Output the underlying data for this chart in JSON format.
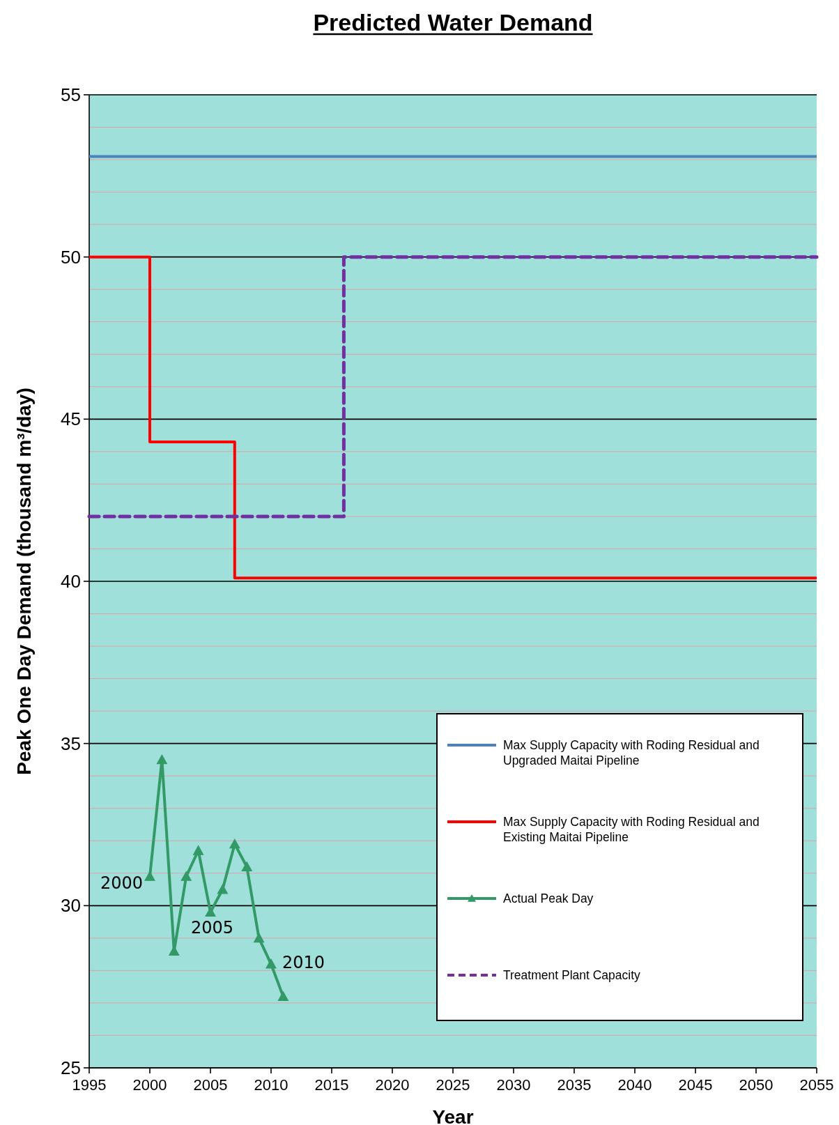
{
  "chart_data": {
    "type": "line",
    "title": "Predicted Water Demand",
    "xlabel": "Year",
    "ylabel": "Peak One Day Demand (thousand m³/day)",
    "xlim": [
      1995,
      2055
    ],
    "xticks": [
      1995,
      2000,
      2005,
      2010,
      2015,
      2020,
      2025,
      2030,
      2035,
      2040,
      2045,
      2050,
      2055
    ],
    "ylim": [
      25,
      55
    ],
    "yticks": [
      25,
      {
        "value": 26,
        "label": null
      },
      {
        "value": 27,
        "label": null
      },
      {
        "value": 28,
        "label": null
      },
      {
        "value": 29,
        "label": null
      },
      30,
      {
        "value": 31,
        "label": null
      },
      {
        "value": 32,
        "label": null
      },
      {
        "value": 33,
        "label": null
      },
      {
        "value": 34,
        "label": null
      },
      35,
      {
        "value": 36,
        "label": null
      },
      {
        "value": 37,
        "label": null
      },
      {
        "value": 38,
        "label": null
      },
      {
        "value": 39,
        "label": null
      },
      40,
      {
        "value": 41,
        "label": null
      },
      {
        "value": 42,
        "label": null
      },
      {
        "value": 43,
        "label": null
      },
      {
        "value": 44,
        "label": null
      },
      45,
      {
        "value": 46,
        "label": null
      },
      {
        "value": 47,
        "label": null
      },
      {
        "value": 48,
        "label": null
      },
      {
        "value": 49,
        "label": null
      },
      50,
      {
        "value": 51,
        "label": null
      },
      {
        "value": 52,
        "label": null
      },
      {
        "value": 53,
        "label": null
      },
      {
        "value": 54,
        "label": null
      },
      55
    ],
    "grid": "y",
    "legend": "bottom right",
    "series": [
      {
        "name": "Max Supply Capacity with Roding Residual and Upgraded Maitai Pipeline",
        "color": "#4f81bd",
        "x": [
          1995,
          2055
        ],
        "values": [
          53.1,
          53.1
        ]
      },
      {
        "name": "Max Supply Capacity with Roding Residual and Existing Maitai Pipeline",
        "type": "step",
        "color": "#ff0000",
        "x": [
          1995,
          2000,
          2007,
          2055
        ],
        "values": [
          50,
          44.3,
          40.1,
          40.1
        ]
      },
      {
        "name": "Actual Peak Day",
        "color": "#339966",
        "marker": "triangle",
        "x": [
          2000,
          2001,
          2002,
          2003,
          2004,
          2005,
          2006,
          2007,
          2008,
          2009,
          2010,
          2011
        ],
        "values": [
          30.9,
          34.5,
          28.6,
          30.9,
          31.7,
          29.8,
          30.5,
          31.9,
          31.2,
          29.0,
          28.2,
          27.2
        ]
      },
      {
        "name": "Treatment Plant Capacity",
        "type": "step",
        "color": "#7030a0",
        "line_style": "dashed",
        "x": [
          1995,
          2016,
          2055
        ],
        "values": [
          42,
          50,
          50
        ]
      }
    ],
    "annotations": [
      {
        "text": "2000",
        "x": 2000,
        "y": 30.9
      },
      {
        "text": "2005",
        "x": 2005,
        "y": 29.8
      },
      {
        "text": "2010",
        "x": 2010,
        "y": 28.2
      }
    ]
  }
}
